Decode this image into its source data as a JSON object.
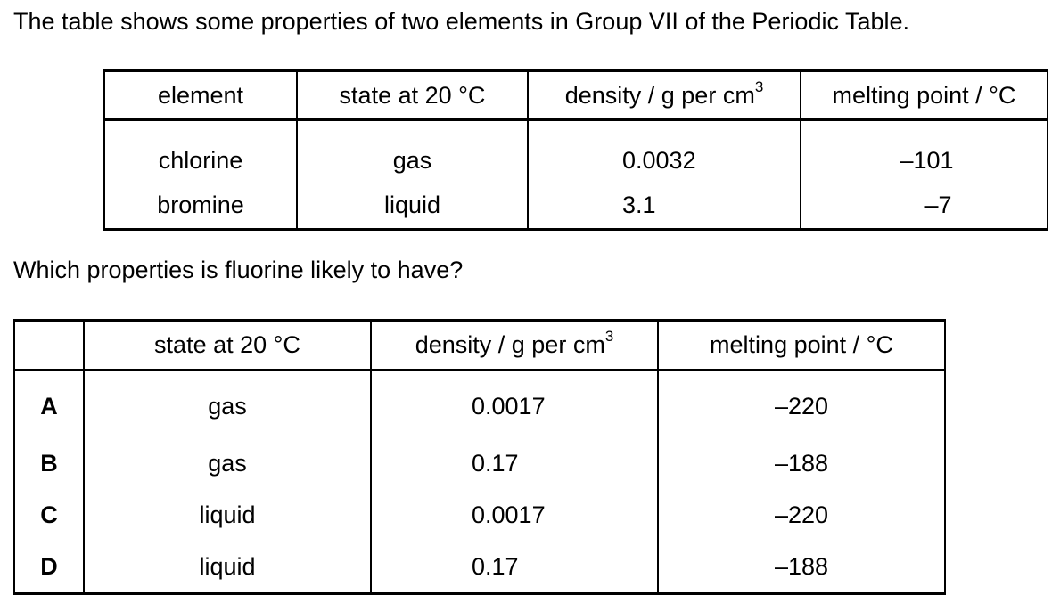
{
  "intro": "The table shows some properties of two elements in Group VII of the Periodic Table.",
  "question": "Which properties is fluorine likely to have?",
  "props_table": {
    "headers": {
      "element": "element",
      "state": "state at 20 °C",
      "density_prefix": "density / g per cm",
      "density_sup": "3",
      "melting": "melting point / °C"
    },
    "rows": [
      {
        "element": "chlorine",
        "state": "gas",
        "density": "0.0032",
        "melting": "–101"
      },
      {
        "element": "bromine",
        "state": "liquid",
        "density": "3.1",
        "melting": "–7"
      }
    ]
  },
  "answer_table": {
    "headers": {
      "blank": "",
      "state": "state at 20 °C",
      "density_prefix": "density / g per cm",
      "density_sup": "3",
      "melting": "melting point / °C"
    },
    "rows": [
      {
        "option": "A",
        "state": "gas",
        "density": "0.0017",
        "melting": "–220"
      },
      {
        "option": "B",
        "state": "gas",
        "density": "0.17",
        "melting": "–188"
      },
      {
        "option": "C",
        "state": "liquid",
        "density": "0.0017",
        "melting": "–220"
      },
      {
        "option": "D",
        "state": "liquid",
        "density": "0.17",
        "melting": "–188"
      }
    ]
  }
}
